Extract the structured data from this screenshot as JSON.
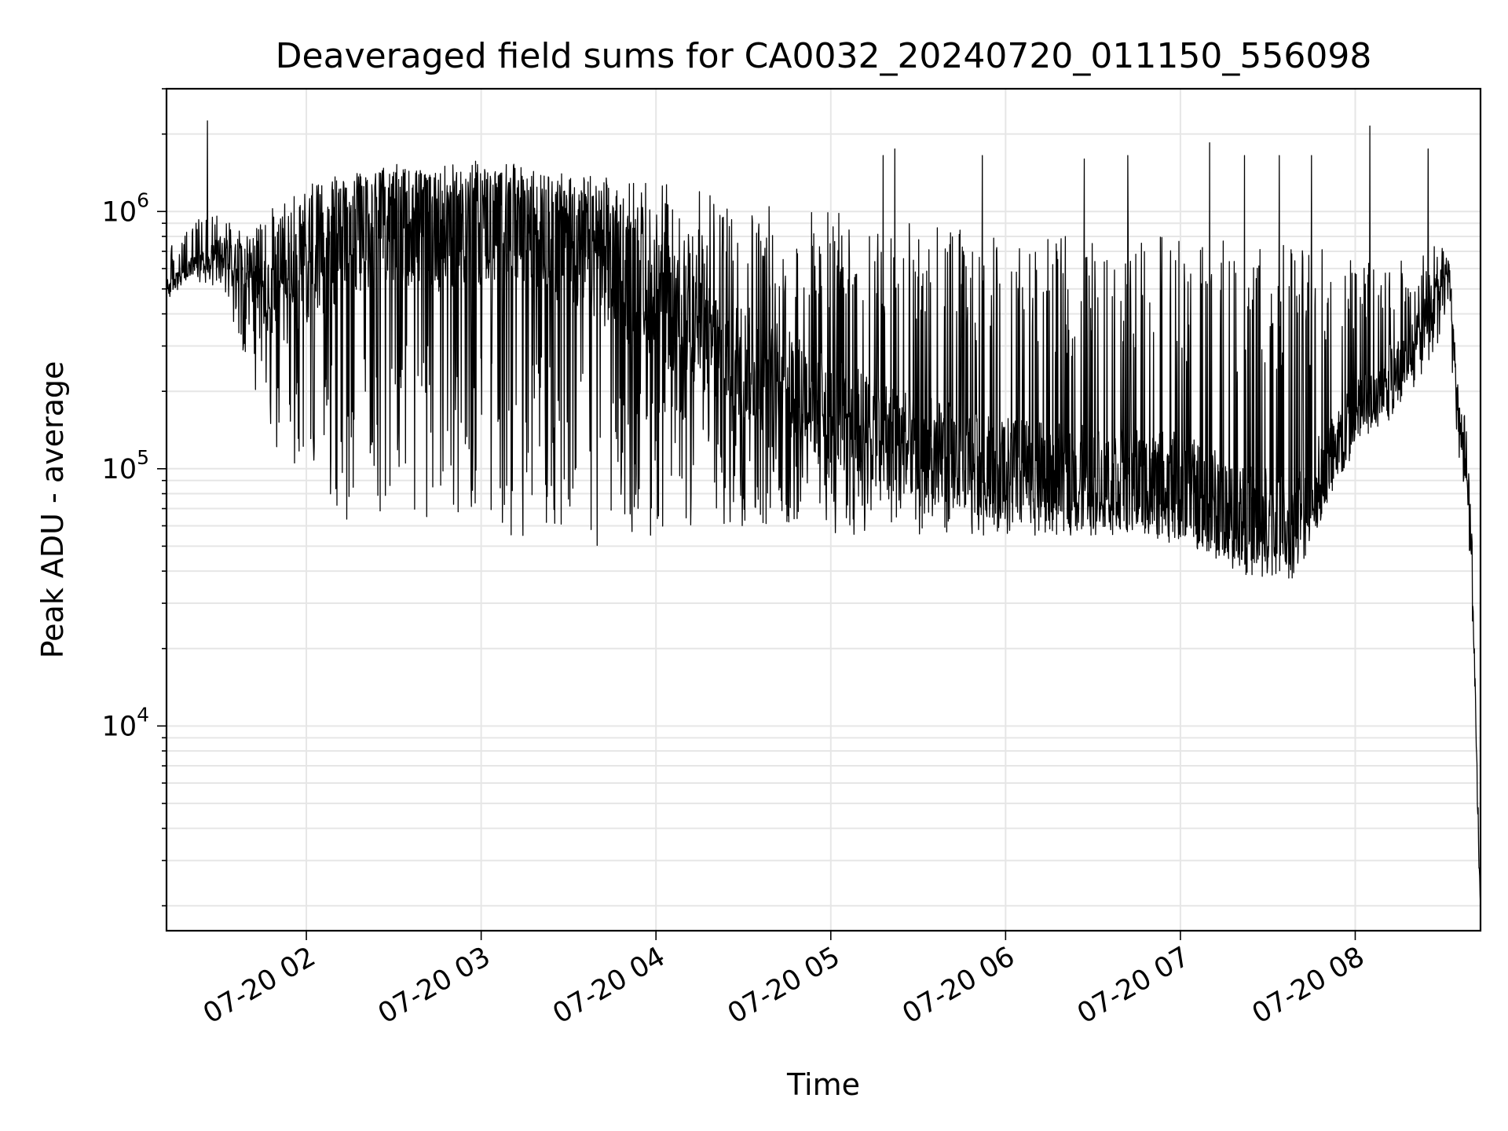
{
  "chart_data": {
    "type": "line",
    "title": "Deaveraged field sums for CA0032_20240720_011150_556098",
    "xlabel": "Time",
    "ylabel": "Peak ADU - average",
    "yscale": "log",
    "ylim": [
      1600,
      3000000
    ],
    "xlim": [
      "07-20 01:12",
      "07-20 08:43"
    ],
    "x_ticks": [
      {
        "value": "07-20 02:00",
        "label": "07-20 02"
      },
      {
        "value": "07-20 03:00",
        "label": "07-20 03"
      },
      {
        "value": "07-20 04:00",
        "label": "07-20 04"
      },
      {
        "value": "07-20 05:00",
        "label": "07-20 05"
      },
      {
        "value": "07-20 06:00",
        "label": "07-20 06"
      },
      {
        "value": "07-20 07:00",
        "label": "07-20 07"
      },
      {
        "value": "07-20 08:00",
        "label": "07-20 08"
      }
    ],
    "y_ticks": [
      {
        "value": 10000,
        "base": "10",
        "exp": "4"
      },
      {
        "value": 100000,
        "base": "10",
        "exp": "5"
      },
      {
        "value": 1000000,
        "base": "10",
        "exp": "6"
      }
    ],
    "grid": true,
    "line_color": "#000000",
    "series": [
      {
        "envelope": {
          "x": [
            "07-20 01:12",
            "07-20 01:20",
            "07-20 01:30",
            "07-20 01:40",
            "07-20 01:50",
            "07-20 02:00",
            "07-20 02:15",
            "07-20 02:30",
            "07-20 02:45",
            "07-20 03:00",
            "07-20 03:15",
            "07-20 03:30",
            "07-20 03:45",
            "07-20 04:00",
            "07-20 04:15",
            "07-20 04:30",
            "07-20 04:45",
            "07-20 05:00",
            "07-20 05:15",
            "07-20 05:30",
            "07-20 05:45",
            "07-20 06:00",
            "07-20 06:15",
            "07-20 06:30",
            "07-20 06:45",
            "07-20 07:00",
            "07-20 07:15",
            "07-20 07:30",
            "07-20 07:40",
            "07-20 07:50",
            "07-20 08:00",
            "07-20 08:10",
            "07-20 08:20",
            "07-20 08:28",
            "07-20 08:32",
            "07-20 08:35",
            "07-20 08:38",
            "07-20 08:40",
            "07-20 08:42",
            "07-20 08:43"
          ],
          "baseline": [
            500000,
            600000,
            700000,
            600000,
            400000,
            600000,
            800000,
            900000,
            850000,
            900000,
            850000,
            750000,
            600000,
            450000,
            330000,
            260000,
            210000,
            170000,
            140000,
            120000,
            110000,
            100000,
            95000,
            92000,
            90000,
            85000,
            70000,
            60000,
            62000,
            100000,
            160000,
            220000,
            300000,
            500000,
            600000,
            180000,
            100000,
            50000,
            5000,
            2000
          ],
          "min": [
            450000,
            550000,
            500000,
            250000,
            100000,
            80000,
            60000,
            70000,
            60000,
            55000,
            55000,
            50000,
            50000,
            55000,
            55000,
            55000,
            55000,
            55000,
            55000,
            55000,
            55000,
            55000,
            55000,
            55000,
            55000,
            50000,
            45000,
            40000,
            45000,
            70000,
            120000,
            140000,
            200000,
            300000,
            400000,
            120000,
            70000,
            30000,
            3000,
            1800
          ],
          "max": [
            700000,
            900000,
            1100000,
            800000,
            1100000,
            1300000,
            1400000,
            1450000,
            1450000,
            1450000,
            1450000,
            1400000,
            1350000,
            1300000,
            1200000,
            1100000,
            1050000,
            1000000,
            950000,
            900000,
            850000,
            800000,
            800000,
            800000,
            800000,
            800000,
            800000,
            800000,
            800000,
            800000,
            700000,
            700000,
            700000,
            750000,
            700000,
            250000,
            150000,
            60000,
            6000,
            2500
          ]
        },
        "peaks": [
          {
            "x": "07-20 01:26",
            "y": 2250000
          },
          {
            "x": "07-20 05:18",
            "y": 1650000
          },
          {
            "x": "07-20 05:22",
            "y": 1750000
          },
          {
            "x": "07-20 05:52",
            "y": 1650000
          },
          {
            "x": "07-20 06:27",
            "y": 1600000
          },
          {
            "x": "07-20 06:42",
            "y": 1650000
          },
          {
            "x": "07-20 07:10",
            "y": 1850000
          },
          {
            "x": "07-20 07:22",
            "y": 1650000
          },
          {
            "x": "07-20 07:34",
            "y": 1650000
          },
          {
            "x": "07-20 07:45",
            "y": 1650000
          },
          {
            "x": "07-20 08:05",
            "y": 2150000
          },
          {
            "x": "07-20 08:25",
            "y": 1750000
          }
        ]
      }
    ]
  }
}
